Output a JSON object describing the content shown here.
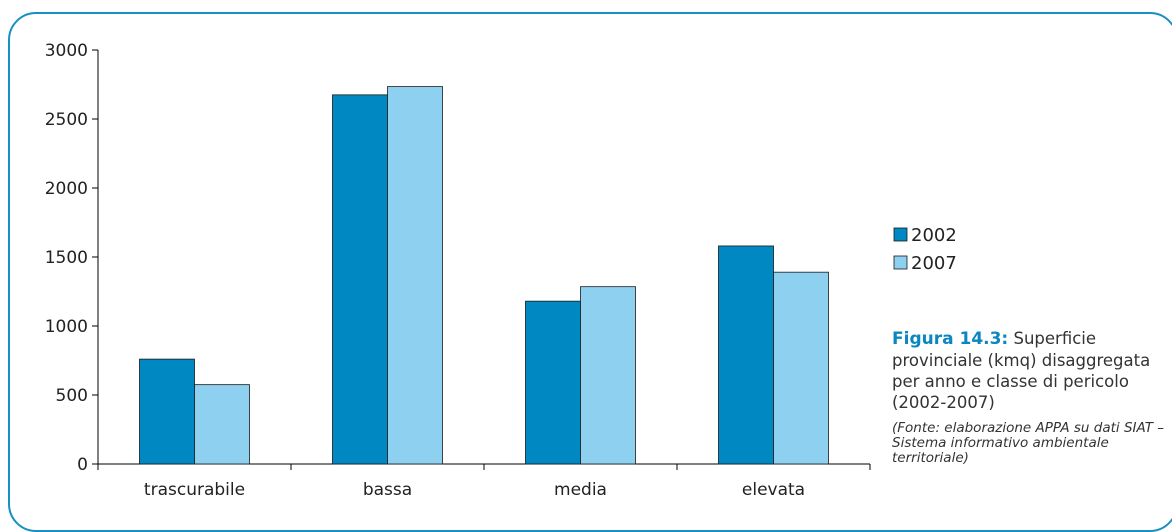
{
  "chart_data": {
    "type": "bar",
    "categories": [
      "trascurabile",
      "bassa",
      "media",
      "elevata"
    ],
    "series": [
      {
        "name": "2002",
        "values": [
          760,
          2675,
          1180,
          1580
        ],
        "color": "#0088c2"
      },
      {
        "name": "2007",
        "values": [
          575,
          2735,
          1285,
          1390
        ],
        "color": "#8dd0f0"
      }
    ],
    "yticks": [
      0,
      500,
      1000,
      1500,
      2000,
      2500,
      3000
    ],
    "ylim": [
      0,
      3000
    ],
    "legend_position": "right",
    "grid": false
  },
  "caption": {
    "label": "Figura 14.3:",
    "text": "Superficie provinciale (kmq) disaggregata per anno e classe di pericolo (2002-2007)",
    "source": "(Fonte: elaborazione APPA su dati SIAT – Sistema informativo ambientale territoriale)"
  },
  "colors": {
    "frame": "#1a8fc4",
    "caption_accent": "#0a86c0"
  }
}
